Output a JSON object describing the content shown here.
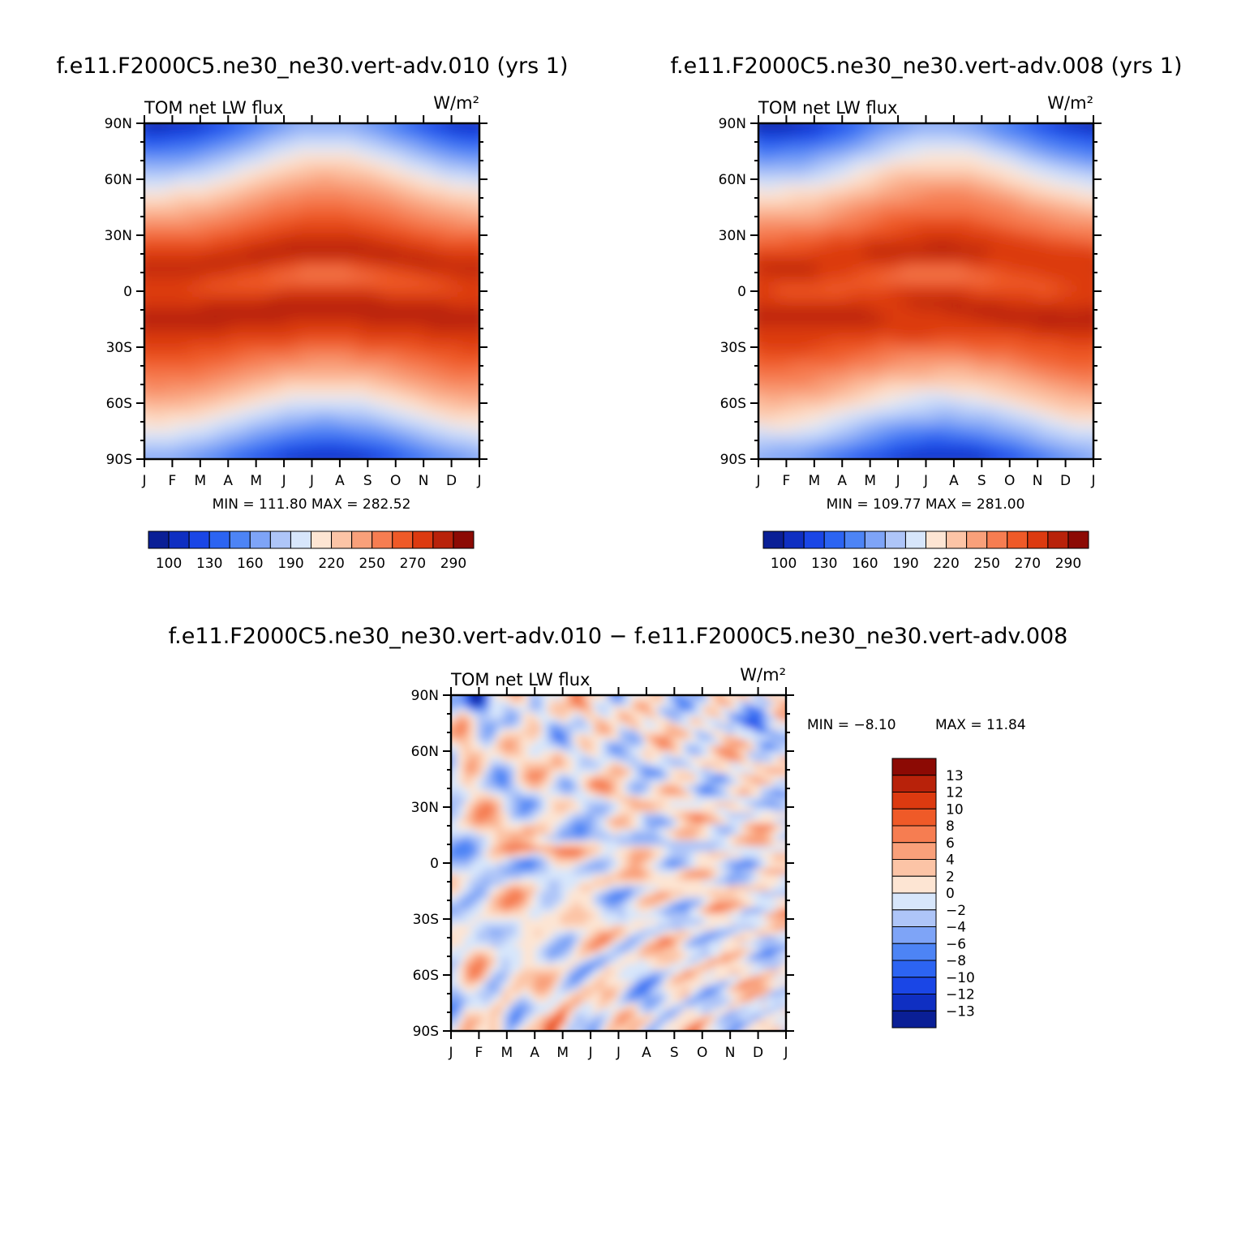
{
  "chart_data": [
    {
      "type": "heatmap",
      "title": "f.e11.F2000C5.ne30_ne30.vert-adv.010 (yrs 1)",
      "left_label": "TOM net LW flux",
      "right_label": "W/m²",
      "x_ticks": [
        "J",
        "F",
        "M",
        "A",
        "M",
        "J",
        "J",
        "A",
        "S",
        "O",
        "N",
        "D",
        "J"
      ],
      "y_ticks": [
        "90N",
        "60N",
        "30N",
        "0",
        "30S",
        "60S",
        "90S"
      ],
      "stats": "MIN = 111.80 MAX = 282.52",
      "colorbar_labels": [
        "100",
        "130",
        "160",
        "190",
        "220",
        "250",
        "270",
        "290"
      ],
      "colorbar_colors": [
        "#0a1f96",
        "#0f2fc2",
        "#1a46e6",
        "#2c64f2",
        "#4d84f5",
        "#7ea4f7",
        "#aec5f8",
        "#d7e6fb",
        "#fde5d3",
        "#fcc4a6",
        "#f9a07a",
        "#f67d51",
        "#ef5a28",
        "#dc3a10",
        "#b8220a",
        "#8c0a04"
      ],
      "clim": [
        85,
        305
      ],
      "zlim": [
        111.8,
        282.52
      ]
    },
    {
      "type": "heatmap",
      "title": "f.e11.F2000C5.ne30_ne30.vert-adv.008 (yrs 1)",
      "left_label": "TOM net LW flux",
      "right_label": "W/m²",
      "x_ticks": [
        "J",
        "F",
        "M",
        "A",
        "M",
        "J",
        "J",
        "A",
        "S",
        "O",
        "N",
        "D",
        "J"
      ],
      "y_ticks": [
        "90N",
        "60N",
        "30N",
        "0",
        "30S",
        "60S",
        "90S"
      ],
      "stats": "MIN = 109.77 MAX = 281.00",
      "colorbar_labels": [
        "100",
        "130",
        "160",
        "190",
        "220",
        "250",
        "270",
        "290"
      ],
      "colorbar_colors": [
        "#0a1f96",
        "#0f2fc2",
        "#1a46e6",
        "#2c64f2",
        "#4d84f5",
        "#7ea4f7",
        "#aec5f8",
        "#d7e6fb",
        "#fde5d3",
        "#fcc4a6",
        "#f9a07a",
        "#f67d51",
        "#ef5a28",
        "#dc3a10",
        "#b8220a",
        "#8c0a04"
      ],
      "clim": [
        85,
        305
      ],
      "zlim": [
        109.77,
        281.0
      ]
    },
    {
      "type": "heatmap",
      "title": "f.e11.F2000C5.ne30_ne30.vert-adv.010 − f.e11.F2000C5.ne30_ne30.vert-adv.008",
      "left_label": "TOM net LW flux",
      "right_label": "W/m²",
      "x_ticks": [
        "J",
        "F",
        "M",
        "A",
        "M",
        "J",
        "J",
        "A",
        "S",
        "O",
        "N",
        "D",
        "J"
      ],
      "y_ticks": [
        "90N",
        "60N",
        "30N",
        "0",
        "30S",
        "60S",
        "90S"
      ],
      "stats_min": "MIN =  −8.10",
      "stats_max": "MAX =  11.84",
      "colorbar_labels": [
        "13",
        "12",
        "10",
        "8",
        "6",
        "4",
        "2",
        "0",
        "−2",
        "−4",
        "−6",
        "−8",
        "−10",
        "−12",
        "−13"
      ],
      "colorbar_colors": [
        "#8c0a04",
        "#b8220a",
        "#dc3a10",
        "#ef5a28",
        "#f67d51",
        "#f9a07a",
        "#fcc4a6",
        "#fde5d3",
        "#d7e6fb",
        "#aec5f8",
        "#7ea4f7",
        "#4d84f5",
        "#2c64f2",
        "#1a46e6",
        "#0f2fc2",
        "#0a1f96"
      ],
      "clim": [
        -14,
        14
      ],
      "zlim": [
        -8.1,
        11.84
      ]
    }
  ]
}
